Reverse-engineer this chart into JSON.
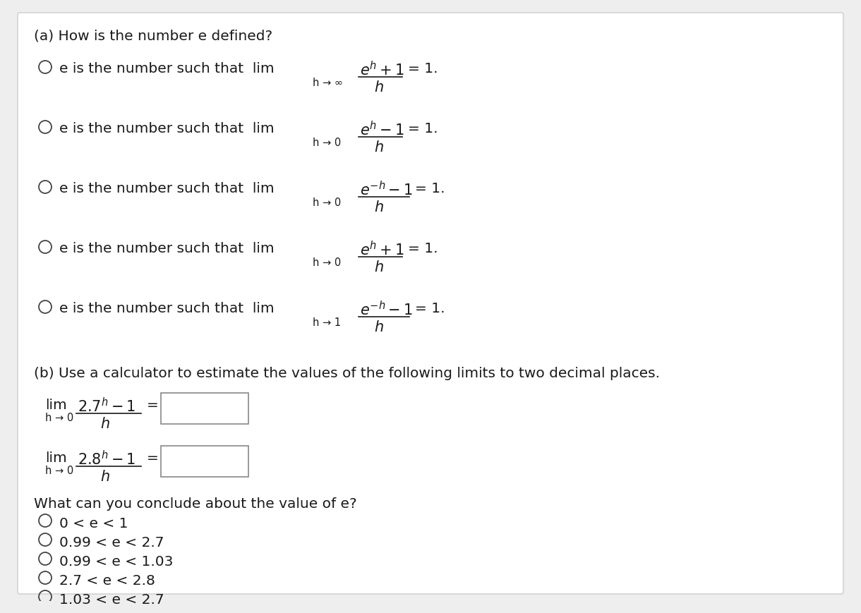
{
  "bg_color": "#eeeeee",
  "panel_color": "#ffffff",
  "text_color": "#1a1a1a",
  "title_a": "(a) How is the number e defined?",
  "title_b": "(b) Use a calculator to estimate the values of the following limits to two decimal places.",
  "part_a_options": [
    {
      "text": "e is the number such that  lim",
      "sub": "h \\u2192 \\u221e",
      "num": "$e^h + 1$",
      "den": "$h$",
      "eq": "= 1."
    },
    {
      "text": "e is the number such that  lim",
      "sub": "h \\u2192 0",
      "num": "$e^h - 1$",
      "den": "$h$",
      "eq": "= 1."
    },
    {
      "text": "e is the number such that  lim",
      "sub": "h \\u2192 0",
      "num": "$e^{-h} - 1$",
      "den": "$h$",
      "eq": "= 1."
    },
    {
      "text": "e is the number such that  lim",
      "sub": "h \\u2192 0",
      "num": "$e^h + 1$",
      "den": "$h$",
      "eq": "= 1."
    },
    {
      "text": "e is the number such that  lim",
      "sub": "h \\u2192 1",
      "num": "$e^{-h} - 1$",
      "den": "$h$",
      "eq": "= 1."
    }
  ],
  "part_b_options": [
    "0 < e < 1",
    "0.99 < e < 2.7",
    "0.99 < e < 1.03",
    "2.7 < e < 2.8",
    "1.03 < e < 2.7"
  ],
  "conclude_text": "What can you conclude about the value of e?",
  "lim1_num": "$2.7^h - 1$",
  "lim1_den": "$h$",
  "lim2_num": "$2.8^h - 1$",
  "lim2_den": "$h$"
}
